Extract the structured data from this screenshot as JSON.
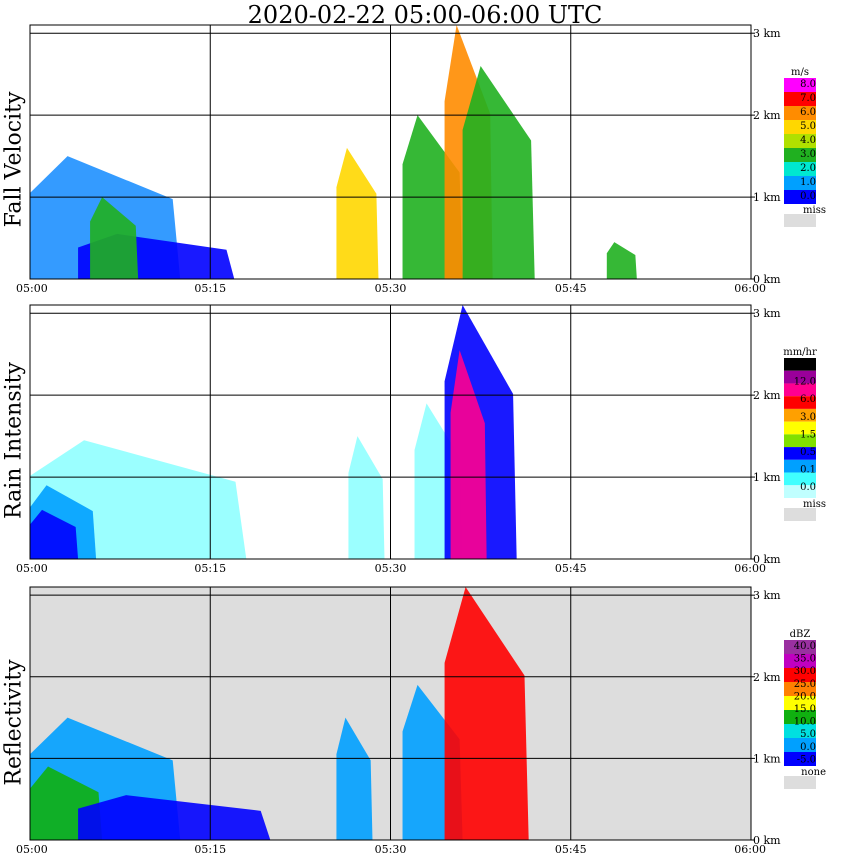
{
  "title": "2020-02-22   05:00-06:00 UTC",
  "x_ticks": [
    "05:00",
    "05:15",
    "05:30",
    "05:45",
    "06:00"
  ],
  "y_ticks": [
    "0 km",
    "1 km",
    "2 km",
    "3 km"
  ],
  "chart_data": [
    {
      "type": "heatmap",
      "title": "Fall Velocity",
      "xlabel": "",
      "ylabel": "",
      "x_range": [
        "05:00",
        "06:00"
      ],
      "y_range_km": [
        0,
        3.1
      ],
      "legend": {
        "placement": "right",
        "unit": "m/s",
        "levels": [
          "8.0",
          "7.0",
          "6.0",
          "5.0",
          "4.0",
          "3.0",
          "2.0",
          "1.0",
          "0.0"
        ],
        "colors": [
          "#ff00ff",
          "#ff0000",
          "#ff8c00",
          "#ffd700",
          "#b0e000",
          "#20b020",
          "#00e8d0",
          "#00a0ff",
          "#0000ff"
        ],
        "miss_label": "miss",
        "miss_color": "#dddddd"
      },
      "background": "#ffffff",
      "features": [
        {
          "t0": 0.0,
          "t1": 12.5,
          "h_km": 1.5,
          "color": "#1e90ff"
        },
        {
          "t0": 4.0,
          "t1": 17.0,
          "h_km": 0.55,
          "color": "#0000ff"
        },
        {
          "t0": 5.0,
          "t1": 9.0,
          "h_km": 1.0,
          "color": "#20b020"
        },
        {
          "t0": 25.5,
          "t1": 29.0,
          "h_km": 1.6,
          "color": "#ffd700"
        },
        {
          "t0": 31.0,
          "t1": 36.0,
          "h_km": 2.0,
          "color": "#20b020"
        },
        {
          "t0": 34.5,
          "t1": 38.5,
          "h_km": 3.1,
          "color": "#ff8c00"
        },
        {
          "t0": 36.0,
          "t1": 42.0,
          "h_km": 2.6,
          "color": "#20b020"
        },
        {
          "t0": 48.0,
          "t1": 50.5,
          "h_km": 0.45,
          "color": "#20b020"
        }
      ]
    },
    {
      "type": "heatmap",
      "title": "Rain Intensity",
      "xlabel": "",
      "ylabel": "",
      "x_range": [
        "05:00",
        "06:00"
      ],
      "y_range_km": [
        0,
        3.1
      ],
      "legend": {
        "placement": "right",
        "unit": "mm/hr",
        "levels": [
          "48.0",
          "12.0",
          "6.0",
          "3.0",
          "1.5",
          "0.5",
          "0.1",
          "0.0"
        ],
        "colors": [
          "#000000",
          "#9a009a",
          "#ff0090",
          "#ff0000",
          "#ffa000",
          "#ffff00",
          "#80e000",
          "#0000ff",
          "#00a0ff",
          "#40ffff",
          "#c0ffff"
        ],
        "miss_label": "miss",
        "miss_color": "#dddddd"
      },
      "background": "#ffffff",
      "features": [
        {
          "t0": 0.0,
          "t1": 18.0,
          "h_km": 1.45,
          "color": "#90ffff"
        },
        {
          "t0": 0.0,
          "t1": 5.5,
          "h_km": 0.9,
          "color": "#00a0ff"
        },
        {
          "t0": 0.0,
          "t1": 4.0,
          "h_km": 0.6,
          "color": "#0000ff"
        },
        {
          "t0": 26.5,
          "t1": 29.5,
          "h_km": 1.5,
          "color": "#90ffff"
        },
        {
          "t0": 32.0,
          "t1": 36.0,
          "h_km": 1.9,
          "color": "#90ffff"
        },
        {
          "t0": 34.5,
          "t1": 40.5,
          "h_km": 3.1,
          "color": "#0000ff"
        },
        {
          "t0": 35.0,
          "t1": 38.0,
          "h_km": 2.55,
          "color": "#ff0090"
        }
      ]
    },
    {
      "type": "heatmap",
      "title": "Reflectivity",
      "xlabel": "",
      "ylabel": "",
      "x_range": [
        "05:00",
        "06:00"
      ],
      "y_range_km": [
        0,
        3.1
      ],
      "legend": {
        "placement": "right",
        "unit": "dBZ",
        "levels": [
          "40.0",
          "35.0",
          "30.0",
          "25.0",
          "20.0",
          "15.0",
          "10.0",
          "5.0",
          "0.0",
          "-5.0"
        ],
        "colors": [
          "#9a30a0",
          "#c000c0",
          "#ff0000",
          "#ff8000",
          "#ffff00",
          "#10b010",
          "#00e0e0",
          "#00a0ff",
          "#0000ff"
        ],
        "none_label": "none",
        "none_color": "#dddddd"
      },
      "background": "#dddddd",
      "features": [
        {
          "t0": 0.0,
          "t1": 12.5,
          "h_km": 1.5,
          "color": "#00a0ff"
        },
        {
          "t0": 0.0,
          "t1": 6.0,
          "h_km": 0.9,
          "color": "#10b010"
        },
        {
          "t0": 4.0,
          "t1": 20.0,
          "h_km": 0.55,
          "color": "#0000ff"
        },
        {
          "t0": 25.5,
          "t1": 28.5,
          "h_km": 1.5,
          "color": "#00a0ff"
        },
        {
          "t0": 31.0,
          "t1": 36.0,
          "h_km": 1.9,
          "color": "#00a0ff"
        },
        {
          "t0": 34.5,
          "t1": 41.5,
          "h_km": 3.1,
          "color": "#ff0000"
        }
      ]
    }
  ]
}
